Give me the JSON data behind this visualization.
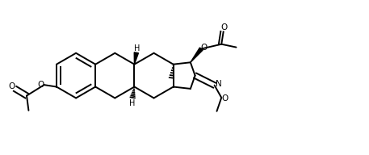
{
  "bg_color": "#ffffff",
  "line_color": "#000000",
  "lw": 1.4,
  "figsize": [
    4.57,
    1.92
  ],
  "dpi": 100,
  "xlim": [
    0,
    9.5
  ],
  "ylim": [
    0,
    4.0
  ]
}
